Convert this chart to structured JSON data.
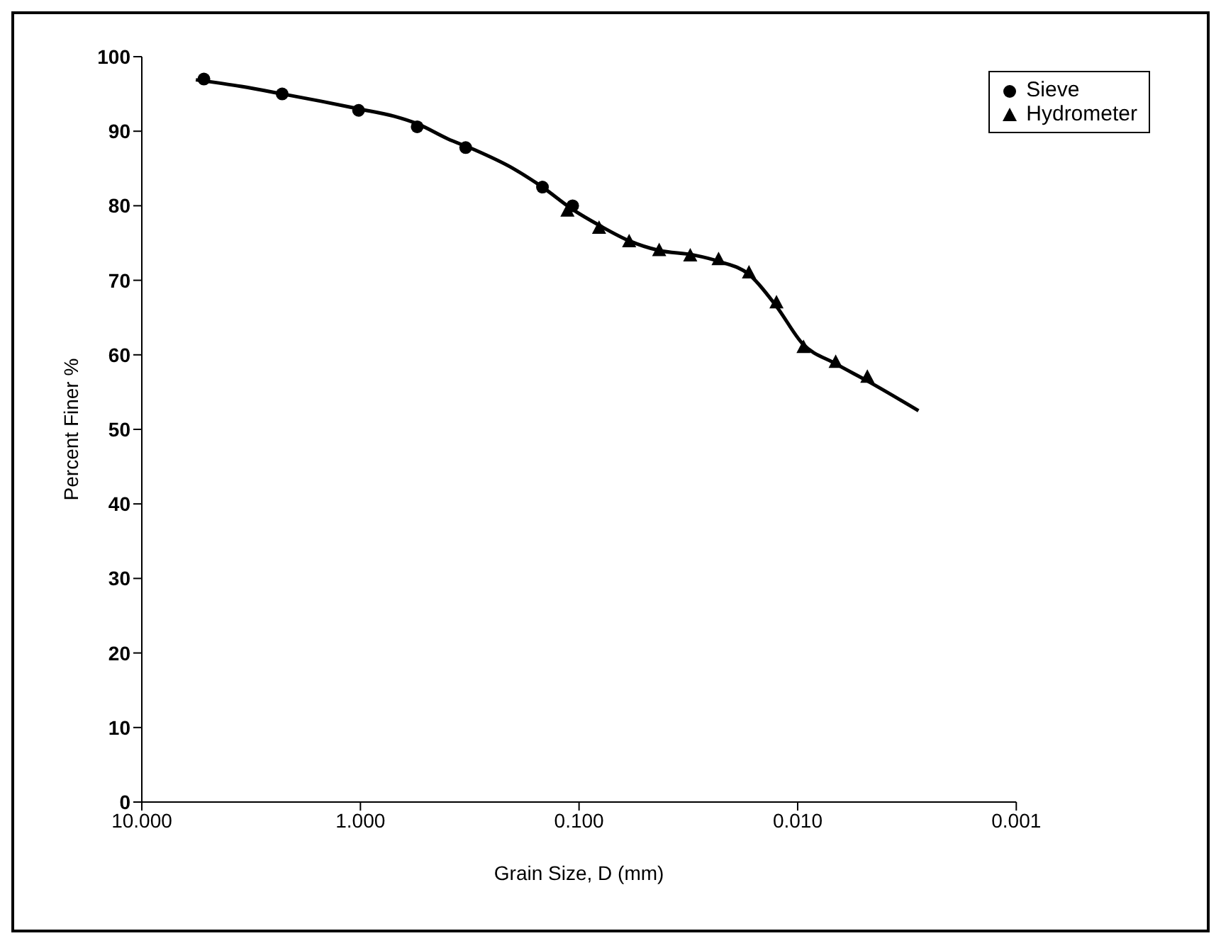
{
  "chart_data": {
    "type": "scatter",
    "xlabel": "Grain Size, D (mm)",
    "ylabel": "Percent Finer %",
    "log": "x",
    "xlim": [
      10,
      0.001
    ],
    "xticks": [
      {
        "value": 10,
        "label": "10.000"
      },
      {
        "value": 1,
        "label": "1.000"
      },
      {
        "value": 0.1,
        "label": "0.100"
      },
      {
        "value": 0.01,
        "label": "0.010"
      },
      {
        "value": 0.001,
        "label": "0.001"
      }
    ],
    "ylim": [
      0,
      100
    ],
    "yticks": [
      0,
      10,
      20,
      30,
      40,
      50,
      60,
      70,
      80,
      90,
      100
    ],
    "grid": false,
    "legend": "top right",
    "series": [
      {
        "name": "Sieve",
        "marker": "circle",
        "color": "#000000",
        "x": [
          5.2,
          2.28,
          1.02,
          0.55,
          0.33,
          0.147,
          0.107
        ],
        "values": [
          97,
          95,
          92.8,
          90.6,
          87.8,
          82.5,
          80
        ]
      },
      {
        "name": "Hydrometer",
        "marker": "triangle",
        "color": "#000000",
        "x": [
          0.113,
          0.081,
          0.059,
          0.043,
          0.031,
          0.023,
          0.0167,
          0.0125,
          0.0094,
          0.0067,
          0.0048
        ],
        "values": [
          79.3,
          77,
          75.2,
          74,
          73.3,
          72.8,
          71,
          67,
          61,
          59,
          57
        ]
      },
      {
        "type": "line",
        "marker": "none",
        "color": "#000000",
        "x": [
          5.66,
          3.5,
          2.28,
          1.5,
          1.02,
          0.7,
          0.55,
          0.4,
          0.3,
          0.2,
          0.147,
          0.107,
          0.08,
          0.059,
          0.043,
          0.03,
          0.0227,
          0.0167,
          0.0125,
          0.0095,
          0.0067,
          0.0048,
          0.0028
        ],
        "values": [
          96.9,
          96,
          95,
          94,
          93,
          92,
          91,
          89,
          87.5,
          85,
          82.5,
          79.5,
          77.3,
          75.3,
          74,
          73.4,
          72.5,
          70.8,
          66.5,
          61.5,
          58.8,
          56.5,
          52.5
        ]
      }
    ]
  }
}
